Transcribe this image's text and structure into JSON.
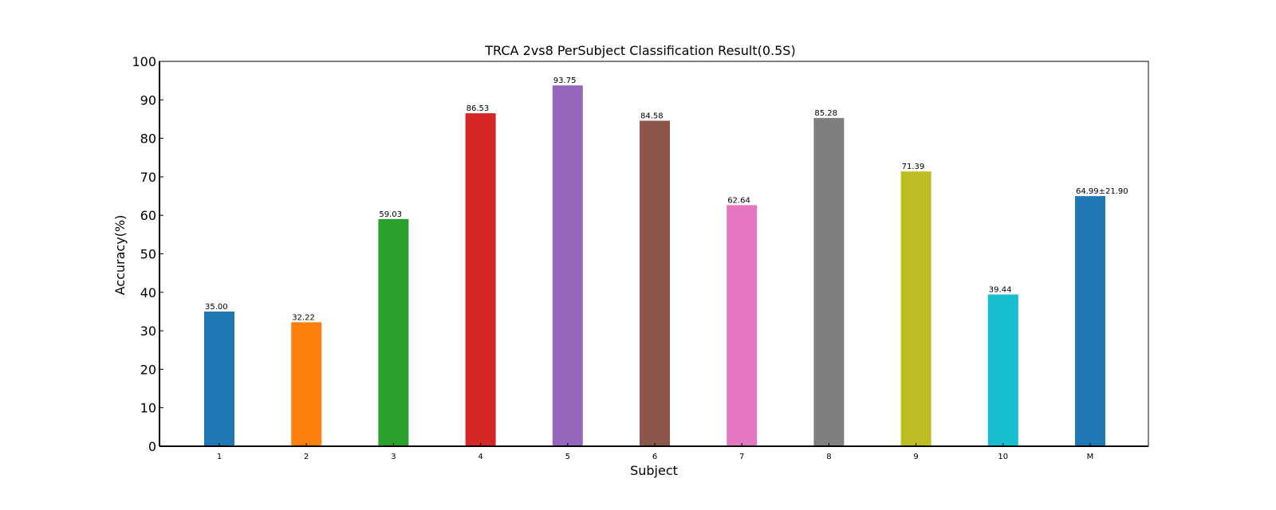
{
  "chart_data": {
    "type": "bar",
    "title": "TRCA 2vs8 PerSubject Classification Result(0.5S)",
    "xlabel": "Subject",
    "ylabel": "Accuracy(%)",
    "ylim": [
      0,
      100
    ],
    "yticks": [
      0,
      10,
      20,
      30,
      40,
      50,
      60,
      70,
      80,
      90,
      100
    ],
    "grid": false,
    "categories": [
      "1",
      "2",
      "3",
      "4",
      "5",
      "6",
      "7",
      "8",
      "9",
      "10",
      "M"
    ],
    "values": [
      35.0,
      32.22,
      59.03,
      86.53,
      93.75,
      84.58,
      62.64,
      85.28,
      71.39,
      39.44,
      64.99
    ],
    "data_labels": [
      "35.00",
      "32.22",
      "59.03",
      "86.53",
      "93.75",
      "84.58",
      "62.64",
      "85.28",
      "71.39",
      "39.44",
      "64.99±21.90"
    ],
    "colors": [
      "#1f77b4",
      "#ff7f0e",
      "#2ca02c",
      "#d62728",
      "#9467bd",
      "#8c564b",
      "#e377c2",
      "#7f7f7f",
      "#bcbd22",
      "#17becf",
      "#1f77b4"
    ],
    "label_colors": [
      "#000000",
      "#000000",
      "#000000",
      "#000000",
      "#000000",
      "#000000",
      "#000000",
      "#000000",
      "#000000",
      "#000000",
      "#ff0000"
    ]
  }
}
